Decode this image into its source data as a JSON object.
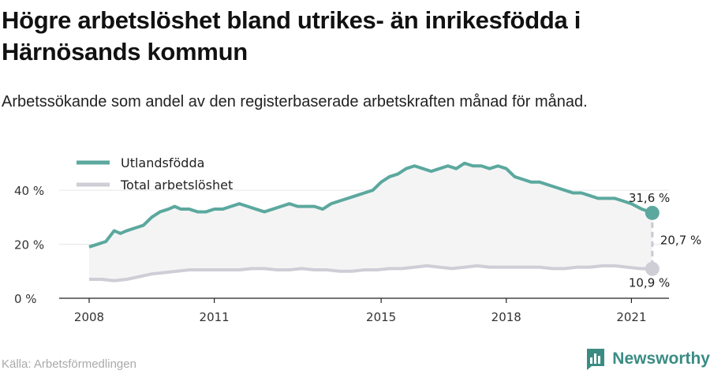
{
  "title": "Högre arbetslöshet bland utrikes- än inrikesfödda i Härnösands kommun",
  "subtitle": "Arbetssökande som andel av den registerbaserade arbetskraften månad för månad.",
  "source": "Källa: Arbetsförmedlingen",
  "brand": "Newsworthy",
  "colors": {
    "foreign": "#5ba89e",
    "total": "#cfcdd6",
    "area": "#f4f4f4",
    "grid": "#e6e6e6"
  },
  "chart_data": {
    "type": "line",
    "xlim": [
      2008,
      2021.9
    ],
    "ylim": [
      0,
      52
    ],
    "x_ticks": [
      2008,
      2011,
      2015,
      2018,
      2021
    ],
    "y_ticks": [
      0,
      20,
      40
    ],
    "y_tick_labels": [
      "0 %",
      "20 %",
      "40 %"
    ],
    "grid": true,
    "legend": "top-left",
    "series": [
      {
        "name": "Utlandsfödda",
        "color": "#5ba89e",
        "x": [
          2008.0,
          2008.2,
          2008.4,
          2008.6,
          2008.75,
          2008.9,
          2009.1,
          2009.3,
          2009.5,
          2009.7,
          2009.9,
          2010.05,
          2010.2,
          2010.4,
          2010.6,
          2010.8,
          2011.0,
          2011.2,
          2011.4,
          2011.6,
          2011.8,
          2012.0,
          2012.2,
          2012.4,
          2012.6,
          2012.8,
          2013.0,
          2013.2,
          2013.4,
          2013.6,
          2013.8,
          2014.0,
          2014.2,
          2014.4,
          2014.6,
          2014.8,
          2015.0,
          2015.2,
          2015.4,
          2015.6,
          2015.8,
          2016.0,
          2016.2,
          2016.4,
          2016.6,
          2016.8,
          2017.0,
          2017.2,
          2017.4,
          2017.6,
          2017.8,
          2018.0,
          2018.2,
          2018.4,
          2018.6,
          2018.8,
          2019.0,
          2019.2,
          2019.4,
          2019.6,
          2019.8,
          2020.0,
          2020.2,
          2020.4,
          2020.6,
          2020.8,
          2021.0,
          2021.25,
          2021.5
        ],
        "y": [
          19,
          20,
          21,
          25,
          24,
          25,
          26,
          27,
          30,
          32,
          33,
          34,
          33,
          33,
          32,
          32,
          33,
          33,
          34,
          35,
          34,
          33,
          32,
          33,
          34,
          35,
          34,
          34,
          34,
          33,
          35,
          36,
          37,
          38,
          39,
          40,
          43,
          45,
          46,
          48,
          49,
          48,
          47,
          48,
          49,
          48,
          50,
          49,
          49,
          48,
          49,
          48,
          45,
          44,
          43,
          43,
          42,
          41,
          40,
          39,
          39,
          38,
          37,
          37,
          37,
          36,
          35,
          33,
          31.6
        ]
      },
      {
        "name": "Total arbetslöshet",
        "color": "#cfcdd6",
        "x": [
          2008.0,
          2008.3,
          2008.6,
          2008.9,
          2009.2,
          2009.5,
          2009.8,
          2010.1,
          2010.4,
          2010.7,
          2011.0,
          2011.3,
          2011.6,
          2011.9,
          2012.2,
          2012.5,
          2012.8,
          2013.1,
          2013.4,
          2013.7,
          2014.0,
          2014.3,
          2014.6,
          2014.9,
          2015.2,
          2015.5,
          2015.8,
          2016.1,
          2016.4,
          2016.7,
          2017.0,
          2017.3,
          2017.6,
          2017.9,
          2018.2,
          2018.5,
          2018.8,
          2019.1,
          2019.4,
          2019.7,
          2020.0,
          2020.3,
          2020.6,
          2020.9,
          2021.2,
          2021.5
        ],
        "y": [
          7,
          7,
          6.5,
          7,
          8,
          9,
          9.5,
          10,
          10.5,
          10.5,
          10.5,
          10.5,
          10.5,
          11,
          11,
          10.5,
          10.5,
          11,
          10.5,
          10.5,
          10,
          10,
          10.5,
          10.5,
          11,
          11,
          11.5,
          12,
          11.5,
          11,
          11.5,
          12,
          11.5,
          11.5,
          11.5,
          11.5,
          11.5,
          11,
          11,
          11.5,
          11.5,
          12,
          12,
          11.5,
          11,
          10.9
        ]
      }
    ],
    "annotations": {
      "foreign_last": "31,6 %",
      "total_last": "10,9 %",
      "gap": "20,7 %"
    }
  }
}
